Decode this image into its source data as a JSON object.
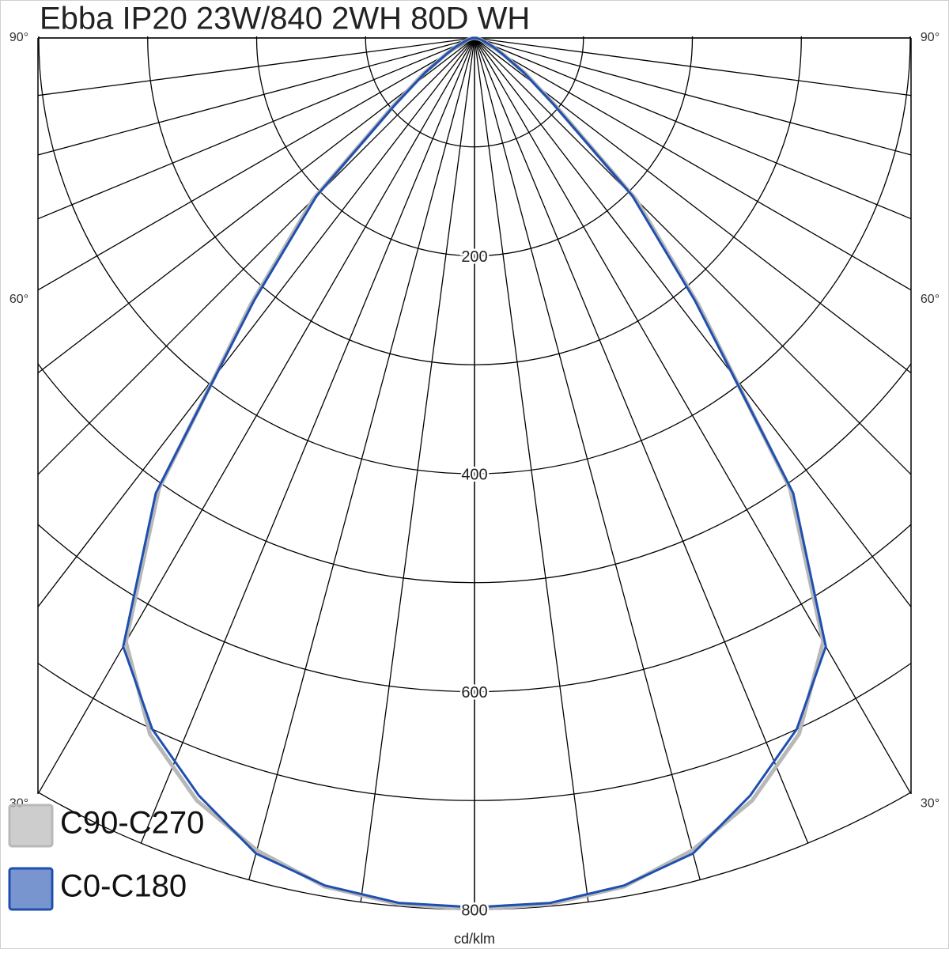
{
  "chart_data": {
    "type": "polar",
    "title": "Ebba IP20 23W/840 2WH 80D WH",
    "unit_label": "cd/klm",
    "x": [
      0,
      5,
      10,
      15,
      20,
      25,
      30,
      35,
      40,
      45,
      50,
      55,
      60,
      65,
      70,
      75,
      80,
      85,
      90
    ],
    "series": [
      {
        "name": "C90-C270",
        "color": "#b8b8b8",
        "values": [
          800,
          798,
          791,
          772,
          745,
          705,
          640,
          505,
          320,
          210,
          98,
          57,
          31,
          18,
          10,
          6,
          3,
          1,
          0
        ]
      },
      {
        "name": "C0-C180",
        "color": "#1f4fb0",
        "values": [
          798,
          797,
          790,
          775,
          740,
          700,
          645,
          510,
          315,
          205,
          95,
          55,
          30,
          18,
          10,
          6,
          3,
          1,
          0
        ]
      }
    ],
    "rlim": [
      0,
      800
    ],
    "rticks": [
      200,
      400,
      600,
      800
    ],
    "rgrid": [
      100,
      200,
      300,
      400,
      500,
      600,
      700,
      800
    ],
    "angle_grid": [
      0,
      7.5,
      15,
      22.5,
      30,
      37.5,
      45,
      52.5,
      60,
      67.5,
      75,
      82.5,
      90
    ],
    "angle_ticks": [
      {
        "value": 90,
        "label": "90°"
      },
      {
        "value": 60,
        "label": "60°"
      },
      {
        "value": 30,
        "label": "30°"
      }
    ],
    "grid": true,
    "legend": "lower left"
  }
}
